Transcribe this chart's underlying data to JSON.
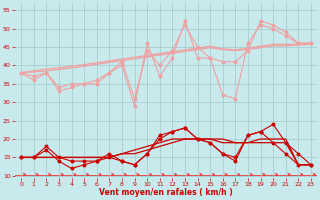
{
  "x": [
    0,
    1,
    2,
    3,
    4,
    5,
    6,
    7,
    8,
    9,
    10,
    11,
    12,
    13,
    14,
    15,
    16,
    17,
    18,
    19,
    20,
    21,
    22,
    23
  ],
  "light_pink_line1": [
    38,
    36,
    38,
    33,
    34,
    35,
    35,
    38,
    40,
    29,
    46,
    37,
    42,
    52,
    42,
    42,
    32,
    31,
    46,
    51,
    50,
    48,
    46,
    46
  ],
  "light_pink_line2": [
    38,
    37,
    38,
    34,
    35,
    35,
    36,
    38,
    41,
    31,
    44,
    40,
    44,
    51,
    45,
    42,
    41,
    41,
    44,
    52,
    51,
    49,
    46,
    46
  ],
  "light_pink_trend1": [
    38,
    38.5,
    39,
    39.3,
    39.8,
    40.2,
    40.7,
    41.2,
    41.7,
    42.2,
    42.7,
    43.2,
    43.7,
    44.2,
    44.7,
    45.2,
    44.5,
    44.2,
    44.7,
    45.2,
    45.7,
    45.7,
    45.8,
    46
  ],
  "light_pink_trend2": [
    38,
    38.2,
    38.5,
    38.9,
    39.3,
    39.8,
    40.3,
    40.8,
    41.3,
    41.8,
    42.3,
    42.8,
    43.3,
    43.8,
    44.3,
    44.8,
    44.3,
    44.0,
    44.3,
    44.8,
    45.3,
    45.3,
    45.5,
    45.8
  ],
  "dark_red_line1": [
    15,
    15,
    17,
    14,
    12,
    13,
    14,
    16,
    14,
    13,
    16,
    21,
    22,
    23,
    20,
    19,
    16,
    14,
    21,
    22,
    19,
    16,
    13,
    13
  ],
  "dark_red_line2": [
    15,
    15,
    18,
    15,
    14,
    14,
    14,
    15,
    14,
    13,
    16,
    20,
    22,
    23,
    20,
    19,
    16,
    15,
    21,
    22,
    24,
    19,
    16,
    13
  ],
  "dark_red_trend1": [
    15,
    15,
    15,
    15,
    15,
    15,
    15,
    15,
    16,
    17,
    18,
    19,
    20,
    20,
    20,
    20,
    20,
    19,
    19,
    20,
    20,
    20,
    13,
    13
  ],
  "dark_red_trend2": [
    15,
    15,
    15,
    15,
    15,
    15,
    15,
    15,
    16,
    16,
    17,
    18,
    19,
    20,
    20,
    20,
    19,
    19,
    19,
    19,
    19,
    19,
    13,
    13
  ],
  "xlabel": "Vent moyen/en rafales ( km/h )",
  "ylim": [
    9.5,
    57
  ],
  "yticks": [
    10,
    15,
    20,
    25,
    30,
    35,
    40,
    45,
    50,
    55
  ],
  "xticks": [
    0,
    1,
    2,
    3,
    4,
    5,
    6,
    7,
    8,
    9,
    10,
    11,
    12,
    13,
    14,
    15,
    16,
    17,
    18,
    19,
    20,
    21,
    22,
    23
  ],
  "bg_color": "#c8eaed",
  "grid_color": "#a0c8cc",
  "light_pink_color": "#f0a0a0",
  "dark_red_color": "#cc0000",
  "arrow_color": "#ee3333"
}
